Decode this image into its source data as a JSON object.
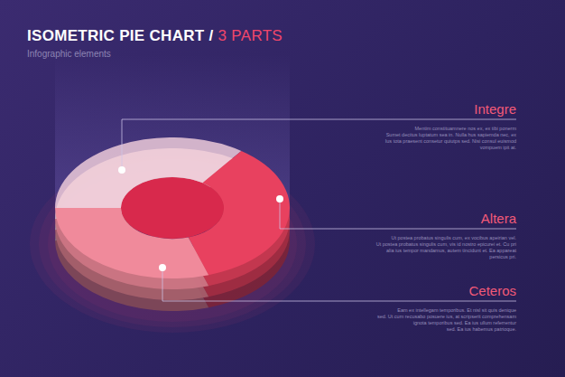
{
  "header": {
    "title": "ISOMETRIC PIE CHART",
    "separator": "/",
    "title_accent": "3 PARTS",
    "subtitle": "Infographic elements"
  },
  "chart_data": {
    "type": "pie",
    "categories": [
      "Integre",
      "Altera",
      "Ceteros"
    ],
    "values": [
      35,
      35,
      30
    ],
    "colors": [
      "#f6d3df",
      "#e8415f",
      "#f08a9b"
    ],
    "annotations": [
      [
        "Mentim constituamnere nos ex, ex tibi ponerm",
        "Sumet decitus luptatum sea in. Nulla hus sapiemda nec, ex",
        "Ius tota praesent consetur quiutps sed. Nisi consul euismod",
        "vompuem ipit at."
      ],
      [
        "Ut postea probatus singulis cum, ex vocibus apeirian vel.",
        "Ut postea probatus singulis cum, vis id nostro epicurei et. Cu pri",
        "alia ius tempor mandamus, autem tincidunt et. Ea appareat",
        "persicus pri."
      ],
      [
        "Eam ex intellegam temporibus. Et nisl sit quis denique",
        "sed. Ut cum recusabo posuere ius, at scripserit comprehensam",
        "ignota temporibus sed. Ea ius ullum referrentur",
        "sed. Ea ius habemus patrioque."
      ]
    ]
  }
}
